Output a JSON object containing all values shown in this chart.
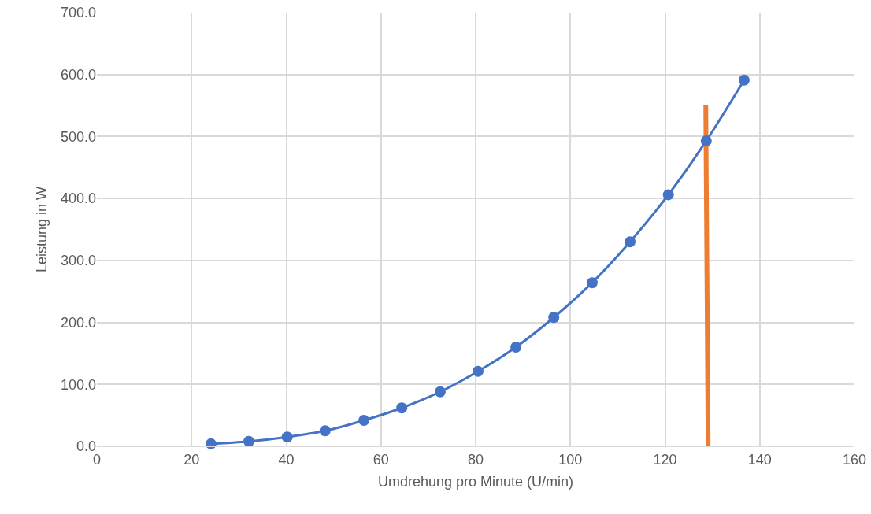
{
  "chart_data": {
    "type": "line",
    "xlabel": "Umdrehung pro Minute (U/min)",
    "ylabel": "Leistung in W",
    "series": [
      {
        "color": "#4472c4",
        "marker": "circle",
        "x": [
          24.1,
          32.1,
          40.2,
          48.2,
          56.4,
          64.4,
          72.5,
          80.5,
          88.5,
          96.5,
          104.6,
          112.6,
          120.7,
          128.7,
          136.7
        ],
        "values": [
          4,
          8,
          15,
          25,
          42,
          62,
          88,
          121,
          160,
          208,
          264,
          330,
          406,
          493,
          591
        ]
      },
      {
        "color": "#ed7d31",
        "marker": "none",
        "x": [
          128.6,
          129.1
        ],
        "values": [
          550,
          0
        ]
      }
    ],
    "xlim": [
      0,
      160
    ],
    "xticks": [
      0,
      20,
      40,
      60,
      80,
      100,
      120,
      140,
      160
    ],
    "ylim": [
      0,
      700
    ],
    "yticks": [
      {
        "value": 0,
        "label": "0.0"
      },
      {
        "value": 100,
        "label": "100.0"
      },
      {
        "value": 200,
        "label": "200.0"
      },
      {
        "value": 300,
        "label": "300.0"
      },
      {
        "value": 400,
        "label": "400.0"
      },
      {
        "value": 500,
        "label": "500.0"
      },
      {
        "value": 600,
        "label": "600.0"
      },
      {
        "value": 700,
        "label": "700.0"
      }
    ],
    "grid": true
  }
}
